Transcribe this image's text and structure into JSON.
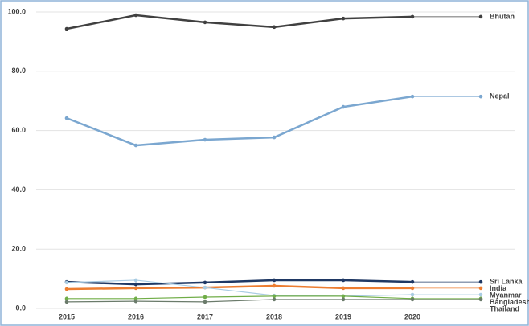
{
  "chart_data": {
    "type": "line",
    "categories": [
      "2015",
      "2016",
      "2017",
      "2018",
      "2019",
      "2020"
    ],
    "ylim": [
      0,
      100
    ],
    "yticks": [
      {
        "value": 0,
        "label": "0.0"
      },
      {
        "value": 20,
        "label": "20.0"
      },
      {
        "value": 40,
        "label": "40.0"
      },
      {
        "value": 60,
        "label": "60.0"
      },
      {
        "value": 80,
        "label": "80.0"
      },
      {
        "value": 100,
        "label": "100.0"
      }
    ],
    "grid": true,
    "series": [
      {
        "name": "Bhutan",
        "color": "#404040",
        "values": [
          94.3,
          98.9,
          96.5,
          94.9,
          97.8,
          98.4
        ]
      },
      {
        "name": "Nepal",
        "color": "#7ba7d0",
        "values": [
          64.2,
          55.0,
          56.9,
          57.7,
          68.0,
          71.5
        ]
      },
      {
        "name": "Sri Lanka",
        "color": "#1f3864",
        "values": [
          8.9,
          8.1,
          8.7,
          9.5,
          9.5,
          8.9
        ]
      },
      {
        "name": "India",
        "color": "#ed7d31",
        "values": [
          6.5,
          6.8,
          7.0,
          7.6,
          6.8,
          6.8
        ]
      },
      {
        "name": "Myanmar",
        "color": "#a9cce3",
        "values": [
          8.7,
          9.5,
          7.0,
          4.3,
          4.1,
          4.6
        ]
      },
      {
        "name": "Bangladesh",
        "color": "#70ad47",
        "values": [
          3.3,
          3.3,
          3.8,
          4.1,
          4.1,
          3.3
        ]
      },
      {
        "name": "Thailand",
        "color": "#6b7b6b",
        "values": [
          2.2,
          2.4,
          2.2,
          3.0,
          3.0,
          3.0
        ]
      }
    ]
  }
}
